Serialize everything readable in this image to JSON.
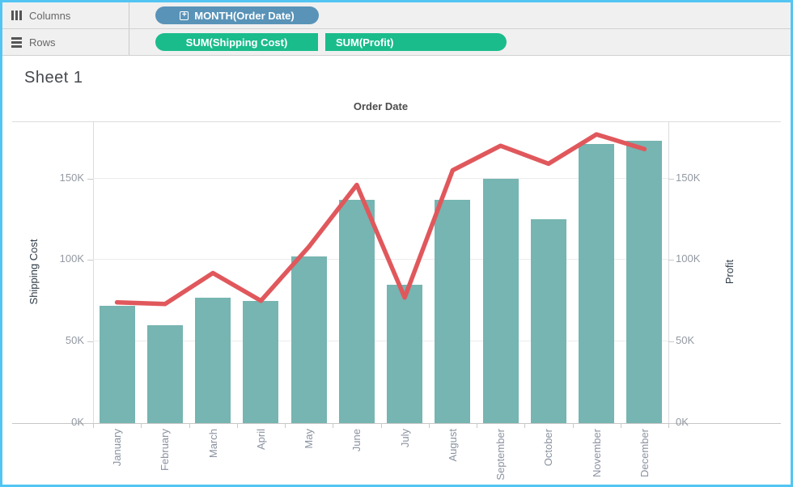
{
  "window": {
    "border_color": "#52c5f2"
  },
  "shelves": {
    "columns": {
      "label": "Columns",
      "pills": [
        {
          "label": "MONTH(Order Date)",
          "color": "#5993b8",
          "icon": "expand-plus"
        }
      ]
    },
    "rows": {
      "label": "Rows",
      "pills": [
        {
          "label": "SUM(Shipping Cost)",
          "color": "#1abc8c"
        },
        {
          "label": "SUM(Profit)",
          "color": "#1abc8c"
        }
      ]
    }
  },
  "sheet_title": "Sheet 1",
  "chart_data": {
    "type": "combo-bar-line-dual-axis",
    "title": "Order Date",
    "categories": [
      "January",
      "February",
      "March",
      "April",
      "May",
      "June",
      "July",
      "August",
      "September",
      "October",
      "November",
      "December"
    ],
    "series": [
      {
        "name": "SUM(Shipping Cost)",
        "mark": "bar",
        "axis": "left",
        "color": "#76b5b1",
        "values_k": [
          72,
          60,
          77,
          75,
          102,
          137,
          85,
          137,
          150,
          125,
          171,
          173
        ]
      },
      {
        "name": "SUM(Profit)",
        "mark": "line",
        "axis": "right",
        "color": "#e0585c",
        "values_k": [
          74,
          73,
          92,
          75,
          108,
          146,
          77,
          155,
          170,
          159,
          177,
          168
        ]
      }
    ],
    "left_axis": {
      "title": "Shipping Cost",
      "tick_values_k": [
        0,
        50,
        100,
        150
      ],
      "tick_labels": [
        "0K",
        "50K",
        "100K",
        "150K"
      ],
      "range_k": [
        0,
        185
      ]
    },
    "right_axis": {
      "title": "Profit",
      "tick_values_k": [
        0,
        50,
        100,
        150
      ],
      "tick_labels": [
        "0K",
        "50K",
        "100K",
        "150K"
      ],
      "range_k": [
        0,
        185
      ]
    },
    "grid": true,
    "legend": "none"
  }
}
